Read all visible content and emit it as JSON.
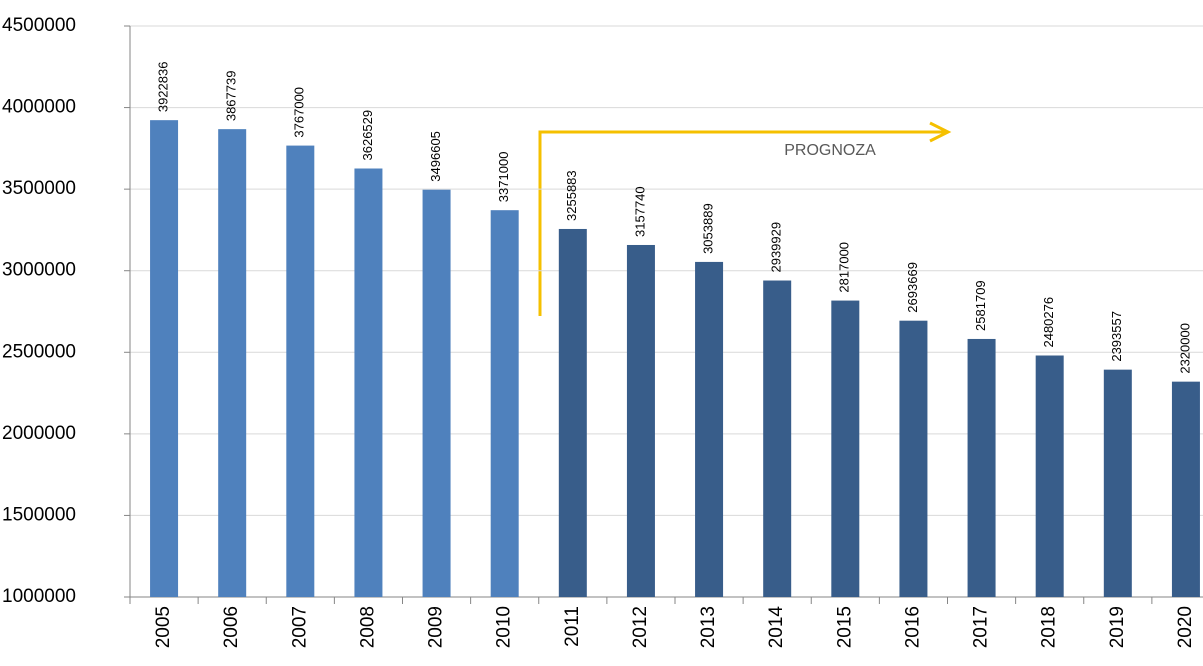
{
  "chart_data": {
    "type": "bar",
    "annotation": "PROGNOZA",
    "categories": [
      "2005",
      "2006",
      "2007",
      "2008",
      "2009",
      "2010",
      "2011",
      "2012",
      "2013",
      "2014",
      "2015",
      "2016",
      "2017",
      "2018",
      "2019",
      "2020"
    ],
    "values": [
      3922836,
      3867739,
      3767000,
      3626529,
      3496605,
      3371000,
      3255883,
      3157740,
      3053889,
      2939929,
      2817000,
      2693669,
      2581709,
      2480276,
      2393557,
      2320000
    ],
    "colors": [
      "#4f81bd",
      "#4f81bd",
      "#4f81bd",
      "#4f81bd",
      "#4f81bd",
      "#4f81bd",
      "#385d8a",
      "#385d8a",
      "#385d8a",
      "#385d8a",
      "#385d8a",
      "#385d8a",
      "#385d8a",
      "#385d8a",
      "#385d8a",
      "#385d8a"
    ],
    "ylim": [
      1000000,
      4500000
    ],
    "yticks": [
      1000000,
      1500000,
      2000000,
      2500000,
      3000000,
      3500000,
      4000000,
      4500000
    ],
    "grid": true
  }
}
